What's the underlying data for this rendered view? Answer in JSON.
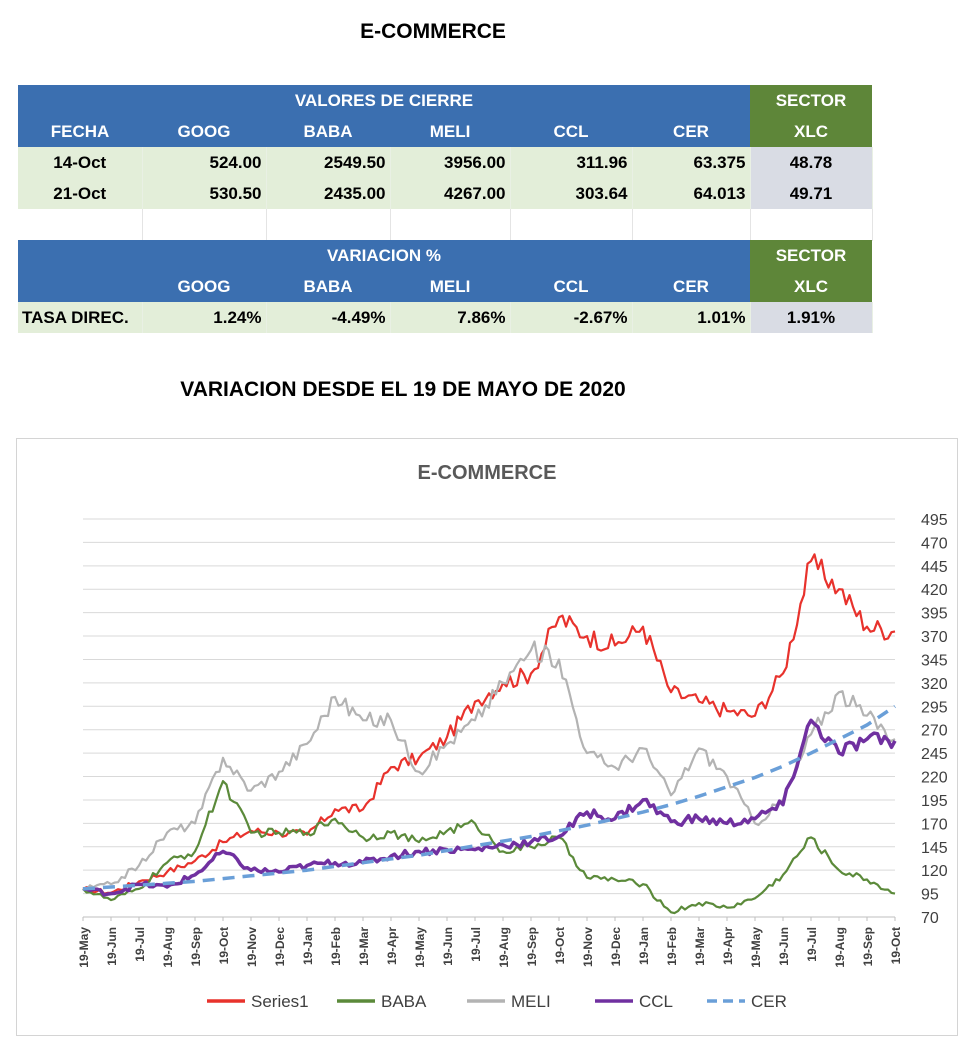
{
  "page_title": "E-COMMERCE",
  "section_title": "VARIACION DESDE EL 19 DE MAYO DE 2020",
  "colors": {
    "header_blue": "#3b6fb0",
    "header_green": "#5e8639",
    "row_green": "#e3eed9",
    "row_gray": "#d9dce4"
  },
  "closing_table": {
    "group_header": "VALORES DE CIERRE",
    "sector_header": "SECTOR",
    "columns": [
      "FECHA",
      "GOOG",
      "BABA",
      "MELI",
      "CCL",
      "CER",
      "XLC"
    ],
    "rows": [
      [
        "14-Oct",
        "524.00",
        "2549.50",
        "3956.00",
        "311.96",
        "63.375",
        "48.78"
      ],
      [
        "21-Oct",
        "530.50",
        "2435.00",
        "4267.00",
        "303.64",
        "64.013",
        "49.71"
      ]
    ]
  },
  "variation_table": {
    "group_header": "VARIACION %",
    "sector_header": "SECTOR",
    "columns": [
      "",
      "GOOG",
      "BABA",
      "MELI",
      "CCL",
      "CER",
      "XLC"
    ],
    "row": [
      "TASA DIREC.",
      "1.24%",
      "-4.49%",
      "7.86%",
      "-2.67%",
      "1.01%",
      "1.91%"
    ]
  },
  "chart_data": {
    "type": "line",
    "title": "E-COMMERCE",
    "xlabel": "",
    "ylabel": "",
    "x": [
      "19-May",
      "19-Jun",
      "19-Jul",
      "19-Aug",
      "19-Sep",
      "19-Oct",
      "19-Nov",
      "19-Dec",
      "19-Jan",
      "19-Feb",
      "19-Mar",
      "19-Apr",
      "19-May",
      "19-Jun",
      "19-Jul",
      "19-Aug",
      "19-Sep",
      "19-Oct",
      "19-Nov",
      "19-Dec",
      "19-Jan",
      "19-Feb",
      "19-Mar",
      "19-Apr",
      "19-May",
      "19-Jun",
      "19-Jul",
      "19-Aug",
      "19-Sep",
      "19-Oct"
    ],
    "yticks": [
      70,
      95,
      120,
      145,
      170,
      195,
      220,
      245,
      270,
      295,
      320,
      345,
      370,
      395,
      420,
      445,
      470,
      495
    ],
    "ylim": [
      70,
      495
    ],
    "grid": true,
    "legend_position": "bottom",
    "series": [
      {
        "name": "Series1",
        "color": "#e8322c",
        "style": "solid",
        "values": [
          100,
          96,
          108,
          118,
          130,
          150,
          162,
          160,
          158,
          185,
          185,
          230,
          240,
          262,
          300,
          320,
          330,
          390,
          370,
          360,
          380,
          310,
          300,
          290,
          285,
          330,
          450,
          420,
          380,
          375
        ]
      },
      {
        "name": "BABA",
        "color": "#5b8a3a",
        "style": "solid",
        "values": [
          100,
          88,
          100,
          128,
          140,
          215,
          160,
          160,
          160,
          175,
          155,
          160,
          150,
          162,
          170,
          140,
          145,
          155,
          112,
          110,
          105,
          75,
          85,
          80,
          90,
          115,
          155,
          120,
          110,
          95
        ]
      },
      {
        "name": "MELI",
        "color": "#b3b3b3",
        "style": "solid",
        "values": [
          100,
          105,
          125,
          160,
          170,
          240,
          205,
          225,
          255,
          305,
          280,
          280,
          225,
          255,
          280,
          320,
          355,
          345,
          245,
          230,
          250,
          200,
          250,
          220,
          170,
          195,
          265,
          310,
          285,
          260
        ]
      },
      {
        "name": "CCL",
        "color": "#7030a0",
        "style": "solid",
        "values": [
          100,
          95,
          105,
          102,
          115,
          140,
          120,
          118,
          125,
          128,
          128,
          135,
          140,
          142,
          142,
          147,
          150,
          156,
          182,
          175,
          195,
          172,
          175,
          170,
          175,
          190,
          280,
          245,
          260,
          258
        ]
      },
      {
        "name": "CER",
        "color": "#6a9fd8",
        "style": "dashed",
        "values": [
          100,
          102,
          104,
          106,
          108,
          111,
          114,
          117,
          120,
          124,
          128,
          132,
          136,
          141,
          146,
          151,
          156,
          162,
          168,
          175,
          182,
          190,
          199,
          209,
          219,
          231,
          245,
          260,
          275,
          295
        ]
      }
    ]
  }
}
